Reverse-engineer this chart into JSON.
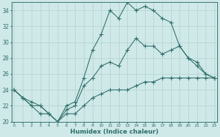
{
  "xlabel": "Humidex (Indice chaleur)",
  "bg_color": "#cfe8e8",
  "line_color": "#2e6e6a",
  "grid_color": "#b0d0cc",
  "x_min": 0,
  "x_max": 23,
  "y_min": 20,
  "y_max": 35,
  "line1_x": [
    0,
    1,
    2,
    3,
    4,
    5,
    6,
    7,
    8,
    9,
    10,
    11,
    12,
    13,
    14,
    15,
    16,
    17,
    18,
    19,
    20,
    21,
    22,
    23
  ],
  "line1_y": [
    24.0,
    23.0,
    22.5,
    22.0,
    21.0,
    20.0,
    22.0,
    22.5,
    25.5,
    29.0,
    31.0,
    34.0,
    33.0,
    35.0,
    34.0,
    34.5,
    34.0,
    33.0,
    32.5,
    29.5,
    28.0,
    27.5,
    26.0,
    25.5
  ],
  "line2_x": [
    0,
    1,
    2,
    3,
    4,
    5,
    6,
    7,
    8,
    9,
    10,
    11,
    12,
    13,
    14,
    15,
    16,
    17,
    18,
    19,
    20,
    21,
    22,
    23
  ],
  "line2_y": [
    24.0,
    23.0,
    22.0,
    22.0,
    21.0,
    20.0,
    21.5,
    22.0,
    24.5,
    25.5,
    27.0,
    27.5,
    27.0,
    29.0,
    30.5,
    29.5,
    29.5,
    28.5,
    29.0,
    29.5,
    28.0,
    27.0,
    26.0,
    25.5
  ],
  "line3_x": [
    0,
    1,
    2,
    3,
    4,
    5,
    6,
    7,
    8,
    9,
    10,
    11,
    12,
    13,
    14,
    15,
    16,
    17,
    18,
    19,
    20,
    21,
    22,
    23
  ],
  "line3_y": [
    24.0,
    23.0,
    22.0,
    21.0,
    21.0,
    20.0,
    21.0,
    21.0,
    22.0,
    23.0,
    23.5,
    24.0,
    24.0,
    24.0,
    24.5,
    25.0,
    25.0,
    25.5,
    25.5,
    25.5,
    25.5,
    25.5,
    25.5,
    25.5
  ],
  "yticks": [
    20,
    22,
    24,
    26,
    28,
    30,
    32,
    34
  ],
  "xticks": [
    0,
    1,
    2,
    3,
    4,
    5,
    6,
    7,
    8,
    9,
    10,
    11,
    12,
    13,
    14,
    15,
    16,
    17,
    18,
    19,
    20,
    21,
    22,
    23
  ]
}
